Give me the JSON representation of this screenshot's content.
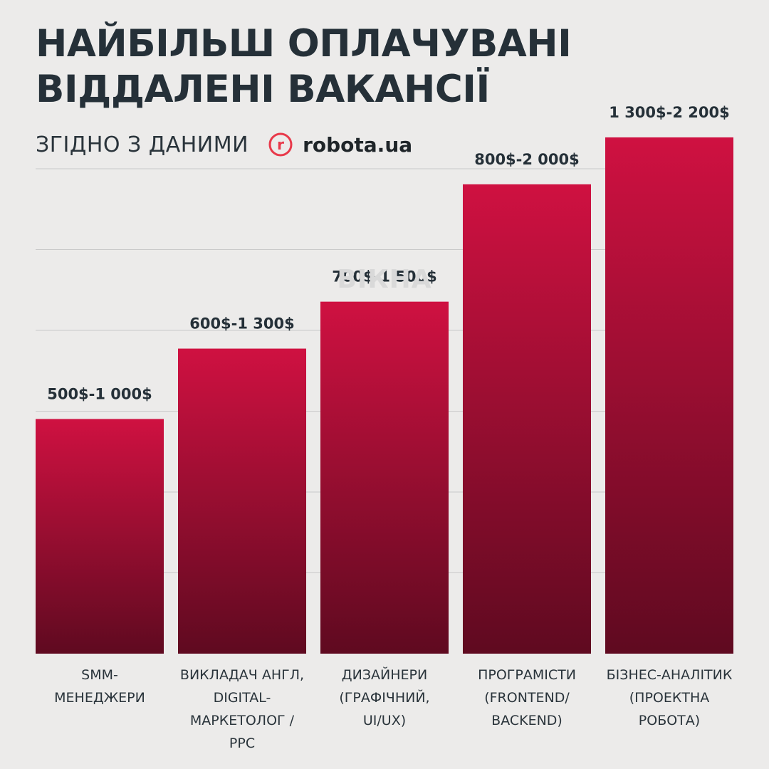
{
  "title_lines": [
    "НАЙБІЛЬШ ОПЛАЧУВАНІ",
    "ВІДДАЛЕНІ ВАКАНСІЇ"
  ],
  "subtitle": "ЗГІДНО З ДАНИМИ",
  "logo": {
    "text": "robota.ua",
    "letter": "r"
  },
  "watermark": "ВІКНА",
  "colors": {
    "bar_top": "#cf1141",
    "bar_bottom": "#5f0a20",
    "background": "#ecebea",
    "text": "#253038",
    "grid": "#c9c9c9",
    "logo_accent": "#e8394a"
  },
  "chart_data": {
    "type": "bar",
    "title": "НАЙБІЛЬШ ОПЛАЧУВАНІ ВІДДАЛЕНІ ВАКАНСІЇ",
    "subtitle": "ЗГІДНО З ДАНИМИ robota.ua",
    "unit": "$",
    "categories": [
      "SMM-МЕНЕДЖЕРИ",
      "ВИКЛАДАЧ АНГЛ, DIGITAL-МАРКЕТОЛОГ / PPC",
      "ДИЗАЙНЕРИ (ГРАФІЧНИЙ, UI/UX)",
      "ПРОГРАМІСТИ (FRONTEND/ BACKEND)",
      "БІЗНЕС-АНАЛІТИК (ПРОЕКТНА РОБОТА)"
    ],
    "category_label_lines": [
      [
        "SMM-",
        "МЕНЕДЖЕРИ"
      ],
      [
        "ВИКЛАДАЧ АНГЛ,",
        "DIGITAL-",
        "МАРКЕТОЛОГ /",
        "PPC"
      ],
      [
        "ДИЗАЙНЕРИ",
        "(ГРАФІЧНИЙ,",
        "UI/UX)"
      ],
      [
        "ПРОГРАМІСТИ",
        "(FRONTEND/",
        "BACKEND)"
      ],
      [
        "БІЗНЕС-АНАЛІТИК",
        "(ПРОЕКТНА",
        "РОБОТА)"
      ]
    ],
    "values": [
      1000,
      1300,
      1500,
      2000,
      2200
    ],
    "ranges": [
      [
        500,
        1000
      ],
      [
        600,
        1300
      ],
      [
        700,
        1500
      ],
      [
        800,
        2000
      ],
      [
        1300,
        2200
      ]
    ],
    "value_labels": [
      "500$-1 000$",
      "600$-1 300$",
      "700$-1 500$",
      "800$-2 000$",
      "1 300$-2 200$"
    ],
    "ylim": [
      0,
      2300
    ],
    "grid": true,
    "xlabel": "",
    "ylabel": ""
  }
}
